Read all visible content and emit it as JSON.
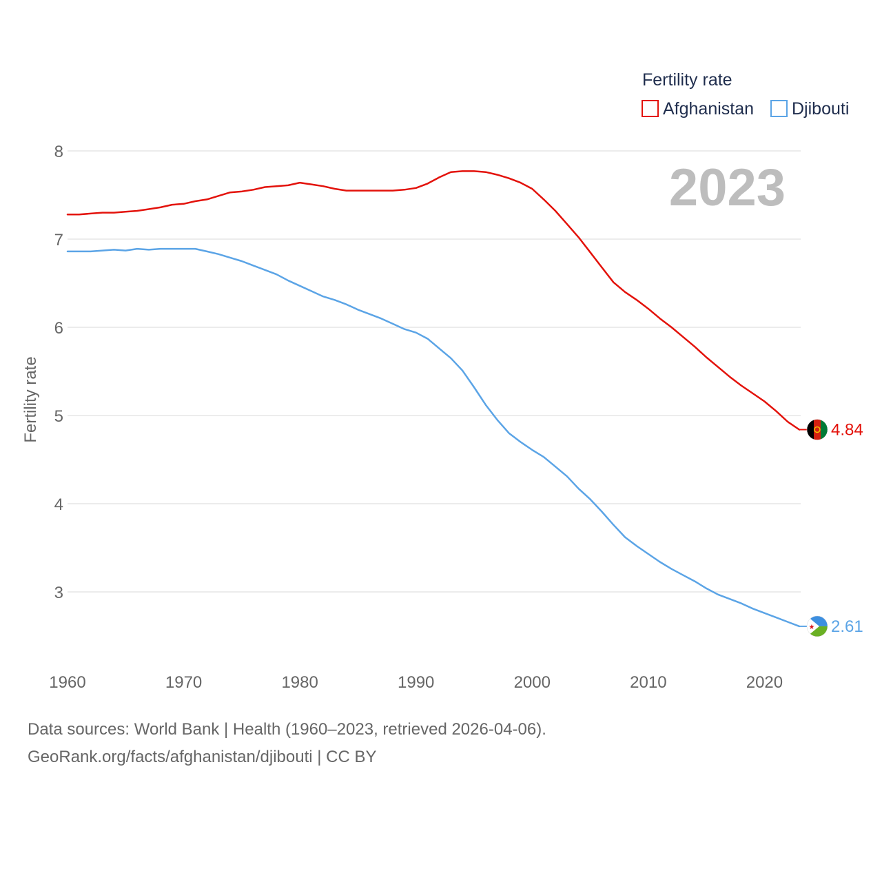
{
  "chart_data": {
    "type": "line",
    "year_label": "2023",
    "legend": {
      "title": "Fertility rate",
      "placement": "top-right"
    },
    "ylabel": "Fertility rate",
    "xlabel": "",
    "xlim": [
      1960,
      2023
    ],
    "ylim": [
      2.35,
      8.25
    ],
    "xticks": [
      "1960",
      "1970",
      "1980",
      "1990",
      "2000",
      "2010",
      "2020"
    ],
    "yticks": [
      "3",
      "4",
      "5",
      "6",
      "7",
      "8"
    ],
    "grid": true,
    "series": [
      {
        "name": "Afghanistan",
        "color": "#e3120b",
        "end_label": "4.84",
        "flag_icon": "afghanistan-flag-icon",
        "values": [
          7.28,
          7.28,
          7.29,
          7.3,
          7.3,
          7.31,
          7.32,
          7.34,
          7.36,
          7.39,
          7.4,
          7.43,
          7.45,
          7.49,
          7.53,
          7.54,
          7.56,
          7.59,
          7.6,
          7.61,
          7.64,
          7.62,
          7.6,
          7.57,
          7.55,
          7.55,
          7.55,
          7.55,
          7.55,
          7.56,
          7.58,
          7.63,
          7.7,
          7.76,
          7.77,
          7.77,
          7.76,
          7.73,
          7.69,
          7.64,
          7.57,
          7.45,
          7.32,
          7.17,
          7.02,
          6.85,
          6.68,
          6.51,
          6.4,
          6.31,
          6.21,
          6.1,
          6.0,
          5.89,
          5.78,
          5.66,
          5.55,
          5.44,
          5.34,
          5.25,
          5.16,
          5.05,
          4.93,
          4.84
        ]
      },
      {
        "name": "Djibouti",
        "color": "#5ba4e6",
        "end_label": "2.61",
        "flag_icon": "djibouti-flag-icon",
        "values": [
          6.86,
          6.86,
          6.86,
          6.87,
          6.88,
          6.87,
          6.89,
          6.88,
          6.89,
          6.89,
          6.89,
          6.89,
          6.86,
          6.83,
          6.79,
          6.75,
          6.7,
          6.65,
          6.6,
          6.53,
          6.47,
          6.41,
          6.35,
          6.31,
          6.26,
          6.2,
          6.15,
          6.1,
          6.04,
          5.98,
          5.94,
          5.87,
          5.76,
          5.65,
          5.51,
          5.32,
          5.12,
          4.95,
          4.8,
          4.7,
          4.61,
          4.53,
          4.42,
          4.31,
          4.17,
          4.05,
          3.91,
          3.76,
          3.62,
          3.52,
          3.43,
          3.34,
          3.26,
          3.19,
          3.12,
          3.04,
          2.97,
          2.92,
          2.87,
          2.81,
          2.76,
          2.71,
          2.66,
          2.61
        ]
      }
    ]
  },
  "footer": {
    "source_line": "Data sources: World Bank | Health (1960–2023, retrieved 2026-04-06).",
    "credit_line": "GeoRank.org/facts/afghanistan/djibouti | CC BY"
  }
}
